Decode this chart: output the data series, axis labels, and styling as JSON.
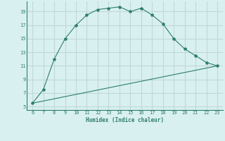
{
  "xlabel": "Humidex (Indice chaleur)",
  "curve_x": [
    6,
    7,
    8,
    9,
    10,
    11,
    12,
    13,
    14,
    15,
    16,
    17,
    18,
    19,
    20,
    21,
    22,
    23
  ],
  "curve_y": [
    5.5,
    7.5,
    12.0,
    15.0,
    17.0,
    18.5,
    19.3,
    19.5,
    19.7,
    19.0,
    19.5,
    18.5,
    17.2,
    15.0,
    13.5,
    12.5,
    11.5,
    11.0
  ],
  "line_x": [
    6,
    23
  ],
  "line_y": [
    5.5,
    11.0
  ],
  "color": "#2e7d6e",
  "bg_color": "#d9f0f0",
  "grid_color": "#c0d8d8",
  "xlim": [
    5.5,
    23.5
  ],
  "ylim": [
    4.5,
    20.5
  ],
  "xticks": [
    6,
    7,
    8,
    9,
    10,
    11,
    12,
    13,
    14,
    15,
    16,
    17,
    18,
    19,
    20,
    21,
    22,
    23
  ],
  "yticks": [
    5,
    7,
    9,
    11,
    13,
    15,
    17,
    19
  ]
}
